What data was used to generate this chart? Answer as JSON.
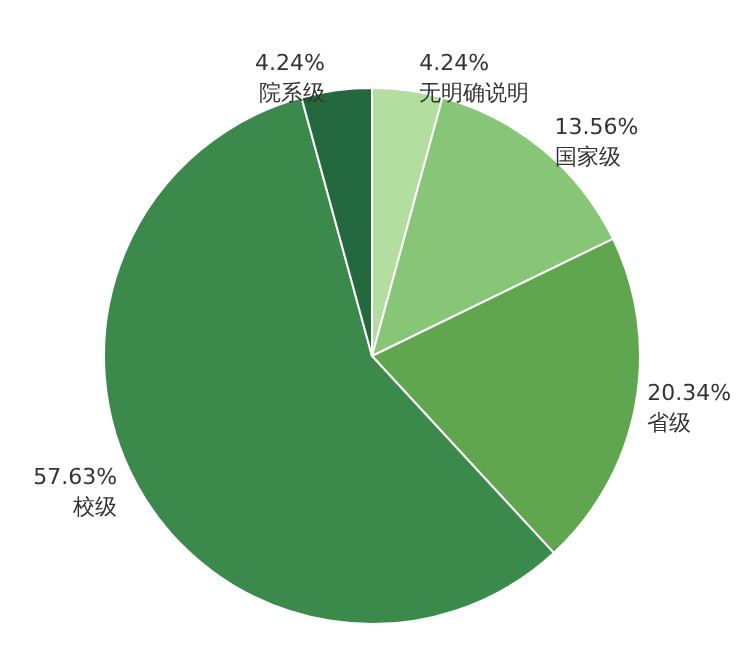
{
  "chart_data": {
    "type": "pie",
    "categories": [
      "无明确说明",
      "国家级",
      "省级",
      "校级",
      "院系级"
    ],
    "values": [
      4.24,
      13.56,
      20.34,
      57.63,
      4.24
    ],
    "value_labels": [
      "4.24%",
      "13.56%",
      "20.34%",
      "57.63%",
      "4.24%"
    ],
    "colors": [
      "#b3dea0",
      "#86c676",
      "#5fa64f",
      "#3b8a4b",
      "#24683d"
    ],
    "legend": false
  }
}
